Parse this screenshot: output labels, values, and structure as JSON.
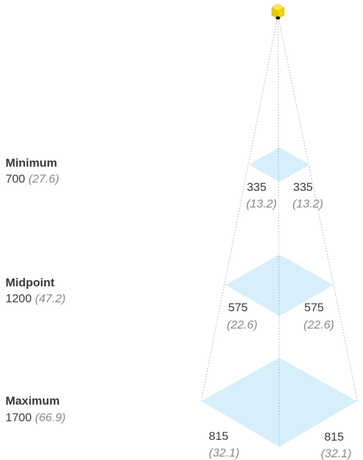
{
  "colors": {
    "plane_fill": "#d6effb",
    "device_body": "#f2d600",
    "device_top": "#ffe94a",
    "guide_line": "#9a9a9a",
    "text": "#3a3a3a",
    "secondary_text": "#8a8a8a"
  },
  "device": {
    "icon": "sensor-device-icon"
  },
  "levels": [
    {
      "title": "Minimum",
      "distance": "700",
      "distance_alt": "(27.6)",
      "left_width": "335",
      "left_width_alt": "(13.2)",
      "right_width": "335",
      "right_width_alt": "(13.2)"
    },
    {
      "title": "Midpoint",
      "distance": "1200",
      "distance_alt": "(47.2)",
      "left_width": "575",
      "left_width_alt": "(22.6)",
      "right_width": "575",
      "right_width_alt": "(22.6)"
    },
    {
      "title": "Maximum",
      "distance": "1700",
      "distance_alt": "(66.9)",
      "left_width": "815",
      "left_width_alt": "(32.1)",
      "right_width": "815",
      "right_width_alt": "(32.1)"
    }
  ]
}
